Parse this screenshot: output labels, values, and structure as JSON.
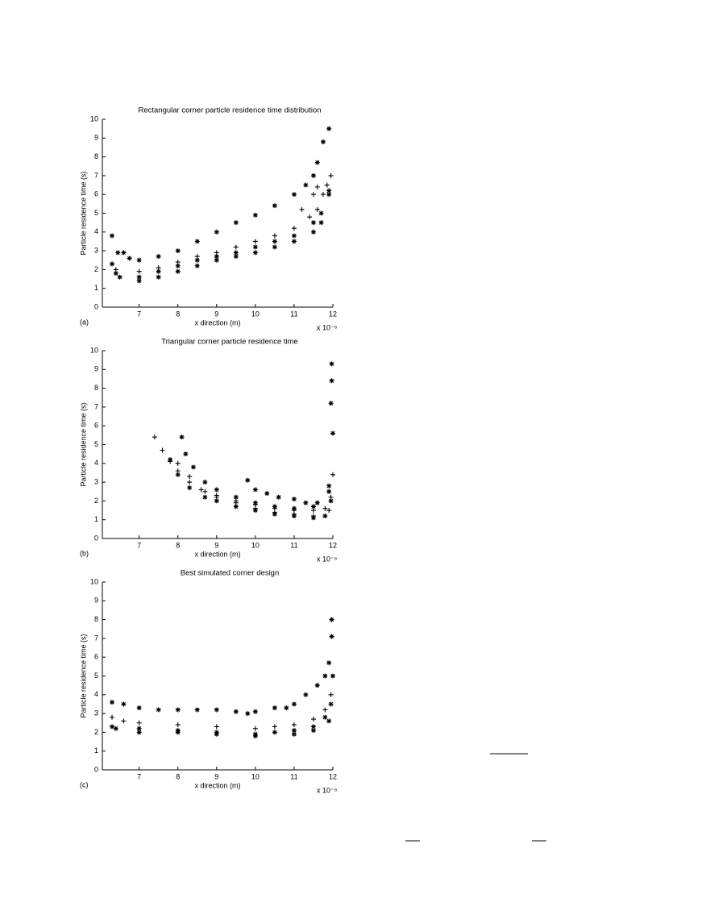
{
  "chart_data": [
    {
      "type": "scatter",
      "title": "Rectangular corner particle residence time distribution",
      "x_label": "x direction (m)",
      "y_label": "Particle residence time (s)",
      "panel_label": "(a)",
      "x_multiplier": "x 10⁻⁶",
      "xlim": [
        6.05,
        12
      ],
      "ylim": [
        0,
        10
      ],
      "xticks": [
        7,
        8,
        9,
        10,
        11,
        12
      ],
      "yticks": [
        0,
        1,
        2,
        3,
        4,
        5,
        6,
        7,
        8,
        9,
        10
      ],
      "series": [
        {
          "marker": "*",
          "color": "#000000",
          "x": [
            6.3,
            6.45,
            6.6,
            6.75,
            7,
            7.5,
            8,
            8.5,
            9,
            9.5,
            10,
            10.5,
            11,
            11.3,
            11.5,
            11.6,
            11.75,
            11.9
          ],
          "values": [
            3.8,
            2.9,
            2.9,
            2.6,
            2.5,
            2.7,
            3.0,
            3.5,
            4.0,
            4.5,
            4.9,
            5.4,
            6.0,
            6.5,
            7.0,
            7.7,
            8.8,
            9.5
          ]
        },
        {
          "marker": "+",
          "color": "#000000",
          "x": [
            6.4,
            7,
            7.5,
            8,
            8.5,
            9,
            9.5,
            10,
            10.5,
            11,
            11.4,
            11.6,
            11.85
          ],
          "values": [
            2.0,
            1.9,
            2.1,
            2.4,
            2.7,
            2.9,
            3.2,
            3.5,
            3.8,
            4.2,
            4.8,
            5.2,
            6.5
          ]
        },
        {
          "marker": "*",
          "color": "#000000",
          "x": [
            6.4,
            7,
            7.5,
            8,
            8.5,
            9,
            9.5,
            10,
            10.5,
            11,
            11.5,
            11.7,
            11.9
          ],
          "values": [
            1.8,
            1.6,
            1.9,
            2.2,
            2.5,
            2.7,
            2.9,
            3.2,
            3.5,
            3.8,
            4.5,
            5.0,
            6.2
          ]
        },
        {
          "marker": "*",
          "color": "#000000",
          "x": [
            6.3,
            6.5,
            7,
            7.5,
            8,
            8.5,
            9,
            9.5,
            10,
            10.5,
            11,
            11.5,
            11.7,
            11.9
          ],
          "values": [
            2.3,
            1.6,
            1.4,
            1.6,
            1.9,
            2.2,
            2.5,
            2.7,
            2.9,
            3.2,
            3.5,
            4.0,
            4.5,
            6.0
          ]
        },
        {
          "marker": "+",
          "color": "#000000",
          "x": [
            11.2,
            11.5,
            11.6,
            11.75,
            11.95
          ],
          "values": [
            5.2,
            6.0,
            6.4,
            6.0,
            7.0
          ]
        }
      ]
    },
    {
      "type": "scatter",
      "title": "Triangular corner particle residence time",
      "x_label": "x direction (m)",
      "y_label": "Particle residence time (s)",
      "panel_label": "(b)",
      "x_multiplier": "x 10⁻⁶",
      "xlim": [
        6.05,
        12
      ],
      "ylim": [
        0,
        10
      ],
      "xticks": [
        7,
        8,
        9,
        10,
        11,
        12
      ],
      "yticks": [
        0,
        1,
        2,
        3,
        4,
        5,
        6,
        7,
        8,
        9,
        10
      ],
      "series": [
        {
          "marker": "+",
          "color": "#000000",
          "x": [
            7.4,
            7.6,
            7.8,
            8.0,
            8.3,
            8.6,
            9,
            9.5,
            10,
            10.5,
            11,
            11.5,
            11.8,
            11.95,
            12
          ],
          "values": [
            5.4,
            4.7,
            4.1,
            3.6,
            3.0,
            2.6,
            2.3,
            2.0,
            1.8,
            1.6,
            1.5,
            1.5,
            1.6,
            2.2,
            3.4
          ]
        },
        {
          "marker": "*",
          "color": "#000000",
          "x": [
            8.1,
            8.2,
            8.4,
            8.7,
            9,
            9.5,
            10,
            10.5,
            11,
            11.5,
            11.9,
            11.95,
            11.97,
            11.97
          ],
          "values": [
            5.4,
            4.5,
            3.8,
            3.0,
            2.6,
            2.2,
            1.9,
            1.7,
            1.6,
            1.7,
            2.8,
            7.2,
            8.4,
            9.3
          ]
        },
        {
          "marker": "*",
          "color": "#000000",
          "x": [
            7.8,
            8,
            8.3,
            8.7,
            9,
            9.5,
            10,
            10.5,
            11,
            11.5,
            11.8,
            11.95,
            12
          ],
          "values": [
            4.2,
            3.4,
            2.7,
            2.2,
            2.0,
            1.7,
            1.5,
            1.3,
            1.2,
            1.1,
            1.2,
            2.0,
            5.6
          ]
        },
        {
          "marker": "*",
          "color": "#000000",
          "x": [
            9.8,
            10,
            10.3,
            10.6,
            11,
            11.3,
            11.6,
            11.9
          ],
          "values": [
            3.1,
            2.6,
            2.4,
            2.2,
            2.1,
            1.9,
            1.9,
            2.5
          ]
        },
        {
          "marker": "+",
          "color": "#000000",
          "x": [
            8,
            8.3,
            8.7,
            9,
            9.5,
            10,
            10.5,
            11,
            11.5,
            11.9
          ],
          "values": [
            4.0,
            3.3,
            2.5,
            2.2,
            1.9,
            1.6,
            1.4,
            1.3,
            1.2,
            1.5
          ]
        }
      ]
    },
    {
      "type": "scatter",
      "title": "Best simulated corner design",
      "x_label": "x direction (m)",
      "y_label": "Particle residence time (s)",
      "panel_label": "(c)",
      "x_multiplier": "x 10⁻⁶",
      "xlim": [
        6.05,
        12
      ],
      "ylim": [
        0,
        10
      ],
      "xticks": [
        7,
        8,
        9,
        10,
        11,
        12
      ],
      "yticks": [
        0,
        1,
        2,
        3,
        4,
        5,
        6,
        7,
        8,
        9,
        10
      ],
      "series": [
        {
          "marker": "*",
          "color": "#000000",
          "x": [
            6.3,
            6.6,
            7,
            7.5,
            8,
            8.5,
            9,
            9.5,
            9.8,
            10,
            10.5,
            10.8,
            11,
            11.3,
            11.6,
            11.8,
            11.9,
            12,
            11.97,
            11.97
          ],
          "values": [
            3.6,
            3.5,
            3.3,
            3.2,
            3.2,
            3.2,
            3.2,
            3.1,
            3.0,
            3.1,
            3.3,
            3.3,
            3.5,
            4.0,
            4.5,
            5.0,
            5.7,
            5.0,
            7.1,
            8.0
          ]
        },
        {
          "marker": "+",
          "color": "#000000",
          "x": [
            6.3,
            6.6,
            7,
            8,
            9,
            10,
            10.5,
            11,
            11.5,
            11.8,
            11.95
          ],
          "values": [
            2.8,
            2.6,
            2.5,
            2.4,
            2.3,
            2.2,
            2.3,
            2.4,
            2.7,
            3.2,
            4.0
          ]
        },
        {
          "marker": "*",
          "color": "#000000",
          "x": [
            6.3,
            7,
            8,
            9,
            10,
            10.5,
            11,
            11.5,
            11.8,
            11.95
          ],
          "values": [
            2.3,
            2.2,
            2.1,
            2.0,
            1.9,
            2.0,
            2.1,
            2.3,
            2.8,
            3.5
          ]
        },
        {
          "marker": "*",
          "color": "#000000",
          "x": [
            6.4,
            7,
            8,
            9,
            10,
            11,
            11.5,
            11.9
          ],
          "values": [
            2.2,
            2.0,
            2.0,
            1.9,
            1.8,
            1.9,
            2.1,
            2.6
          ]
        }
      ]
    }
  ]
}
